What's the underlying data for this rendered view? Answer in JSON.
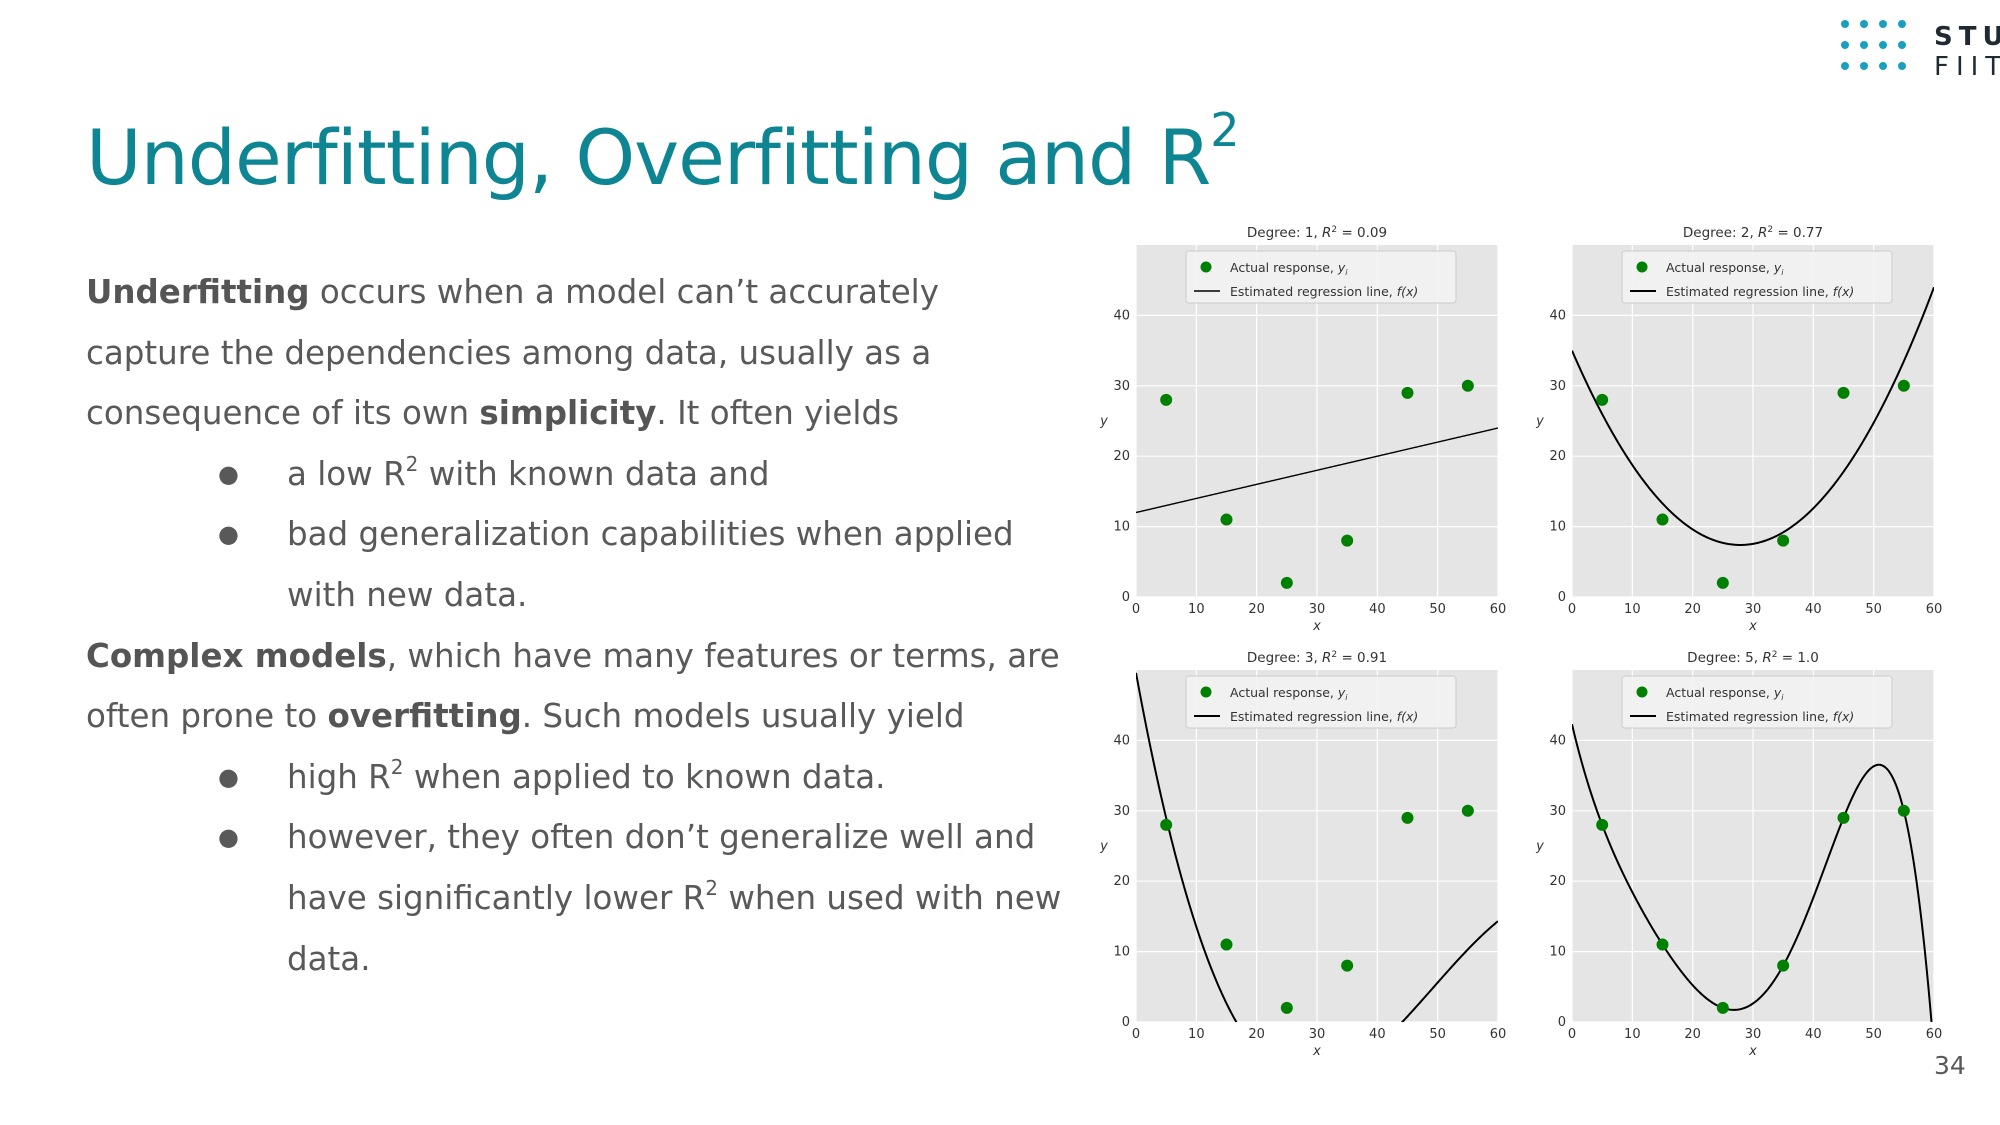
{
  "slide": {
    "title_main": "Underfitting, Overfitting and R",
    "title_sup": "2",
    "page_number": "34",
    "accent_color": "#0e8592",
    "logo": {
      "line1": "STU",
      "line2": "FIIT",
      "dot_color": "#1a9fc0"
    }
  },
  "body": {
    "p1": {
      "b1": "Underfitting",
      "t1": " occurs when a model can’t accurately",
      "l2": "capture the dependencies among data, usually as a",
      "t3": "consequence of its own ",
      "b3": "simplicity",
      "t3b": ". It often yields"
    },
    "bullets1": [
      {
        "pre": "a low R",
        "sup": "2",
        "post": " with known data and"
      },
      {
        "l1": "bad generalization capabilities when applied",
        "l2": "with new data."
      }
    ],
    "p2": {
      "b1": "Complex models",
      "t1": ", which have many features or terms, are",
      "t2": "often prone to ",
      "b2": "overfitting",
      "t2b": ". Such models usually yield"
    },
    "bullets2": [
      {
        "pre": "high R",
        "sup": "2",
        "post": " when applied to known data."
      },
      {
        "l1": "however, they often don’t generalize well and",
        "l2_pre": "have significantly lower R",
        "l2_sup": "2",
        "l2_post": " when used with new",
        "l3": "data."
      }
    ],
    "bullet_glyph": "●"
  },
  "chart_data": [
    {
      "type": "scatter",
      "title_pre": "Degree: 1, ",
      "title_r2": "0.09",
      "xlabel": "x",
      "ylabel": "y",
      "xlim": [
        0,
        60
      ],
      "ylim": [
        0,
        50
      ],
      "xticks": [
        0,
        10,
        20,
        30,
        40,
        50,
        60
      ],
      "yticks": [
        0,
        10,
        20,
        30,
        40
      ],
      "grid": true,
      "legend_placement": "top-center",
      "points": {
        "name": "Actual response, y_i",
        "x": [
          5,
          15,
          25,
          35,
          45,
          55
        ],
        "y": [
          28,
          11,
          2,
          8,
          29,
          30
        ],
        "color": "#008000"
      },
      "fit": {
        "name": "Estimated regression line, f(x)",
        "coeffs": [
          12.0,
          0.2
        ]
      }
    },
    {
      "type": "scatter",
      "title_pre": "Degree: 2, ",
      "title_r2": "0.77",
      "xlabel": "x",
      "ylabel": "y",
      "xlim": [
        0,
        60
      ],
      "ylim": [
        0,
        50
      ],
      "xticks": [
        0,
        10,
        20,
        30,
        40,
        50,
        60
      ],
      "yticks": [
        0,
        10,
        20,
        30,
        40
      ],
      "grid": true,
      "legend_placement": "top-center",
      "points": {
        "name": "Actual response, y_i",
        "x": [
          5,
          15,
          25,
          35,
          45,
          55
        ],
        "y": [
          28,
          11,
          2,
          8,
          29,
          30
        ],
        "color": "#008000"
      },
      "fit": {
        "name": "Estimated regression line, f(x)",
        "coeffs": [
          35.0,
          -1.98,
          0.0355
        ]
      }
    },
    {
      "type": "scatter",
      "title_pre": "Degree: 3, ",
      "title_r2": "0.91",
      "xlabel": "x",
      "ylabel": "y",
      "xlim": [
        0,
        60
      ],
      "ylim": [
        0,
        50
      ],
      "xticks": [
        0,
        10,
        20,
        30,
        40,
        50,
        60
      ],
      "yticks": [
        0,
        10,
        20,
        30,
        40
      ],
      "grid": true,
      "legend_placement": "top-center",
      "points": {
        "name": "Actual response, y_i",
        "x": [
          5,
          15,
          25,
          35,
          45,
          55
        ],
        "y": [
          28,
          11,
          2,
          8,
          29,
          30
        ],
        "color": "#008000"
      },
      "fit": {
        "name": "Estimated regression line, f(x)",
        "coeffs": [
          49.6,
          -4.68,
          0.115,
          -0.00078
        ]
      }
    },
    {
      "type": "scatter",
      "title_pre": "Degree: 5, ",
      "title_r2": "1.0",
      "xlabel": "x",
      "ylabel": "y",
      "xlim": [
        0,
        60
      ],
      "ylim": [
        0,
        50
      ],
      "xticks": [
        0,
        10,
        20,
        30,
        40,
        50,
        60
      ],
      "yticks": [
        0,
        10,
        20,
        30,
        40
      ],
      "grid": true,
      "legend_placement": "top-center",
      "points": {
        "name": "Actual response, y_i",
        "x": [
          5,
          15,
          25,
          35,
          45,
          55
        ],
        "y": [
          28,
          11,
          2,
          8,
          29,
          30
        ],
        "color": "#008000"
      },
      "fit": {
        "name": "Estimated regression line, f(x)",
        "xmax": 60,
        "knots_x": [
          5,
          15,
          25,
          35,
          45,
          55
        ],
        "knots_y": [
          28,
          11,
          2,
          8,
          29,
          30
        ]
      }
    }
  ]
}
